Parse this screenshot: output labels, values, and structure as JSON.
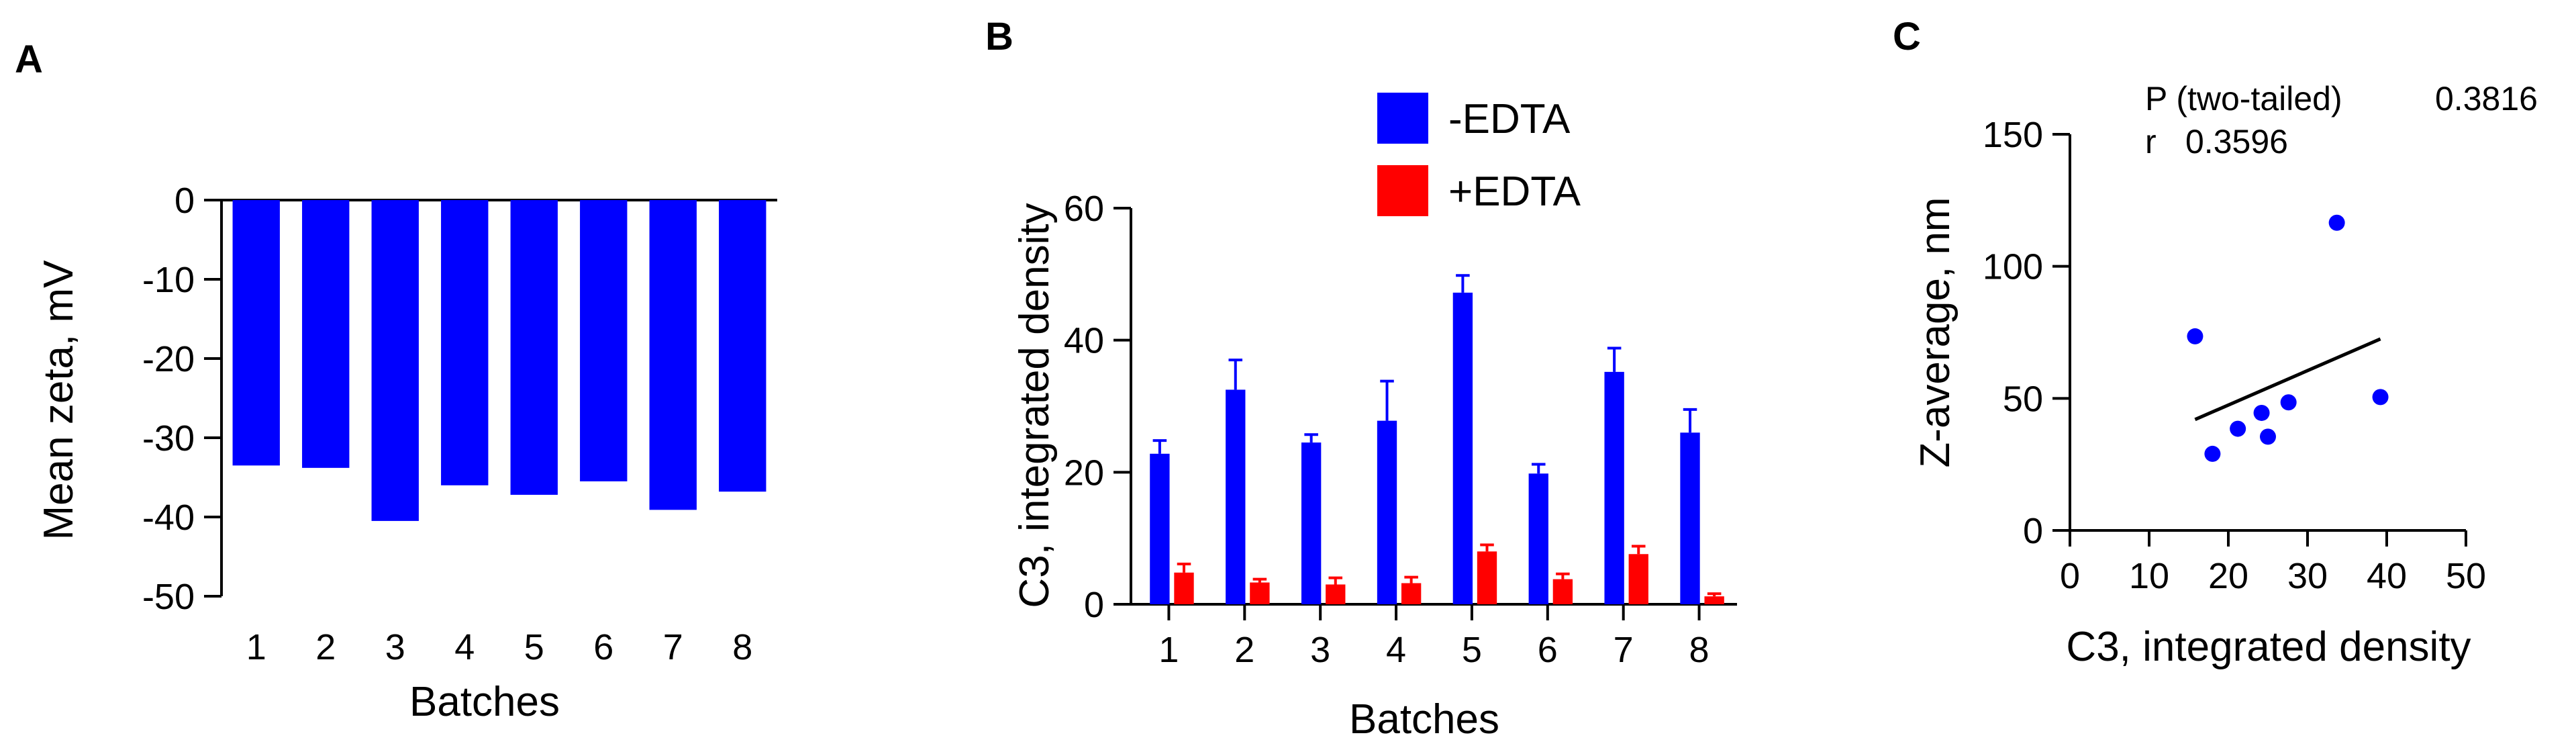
{
  "panels": [
    {
      "letter": "A"
    },
    {
      "letter": "B"
    },
    {
      "letter": "C"
    }
  ],
  "chart_data": [
    {
      "panel": "A",
      "type": "bar",
      "categories": [
        "1",
        "2",
        "3",
        "4",
        "5",
        "6",
        "7",
        "8"
      ],
      "values": [
        -33.5,
        -33.8,
        -40.5,
        -36.0,
        -37.2,
        -35.5,
        -39.1,
        -36.8
      ],
      "color": "#0000ff",
      "xlabel": "Batches",
      "ylabel": "Mean zeta, mV",
      "ylim": [
        -50,
        0
      ],
      "yticks": [
        "0",
        "-10",
        "-20",
        "-30",
        "-40",
        "-50"
      ],
      "ytick_values": [
        0,
        -10,
        -20,
        -30,
        -40,
        -50
      ]
    },
    {
      "panel": "B",
      "type": "bar",
      "categories": [
        "1",
        "2",
        "3",
        "4",
        "5",
        "6",
        "7",
        "8"
      ],
      "series": [
        {
          "name": "-EDTA",
          "color": "#0000ff",
          "values": [
            22.8,
            32.5,
            24.5,
            27.8,
            47.2,
            19.8,
            35.2,
            26.0
          ],
          "errors": [
            2.0,
            4.5,
            1.2,
            6.0,
            2.6,
            1.4,
            3.6,
            3.5
          ]
        },
        {
          "name": "+EDTA",
          "color": "#ff0000",
          "values": [
            4.8,
            3.3,
            3.0,
            3.2,
            8.0,
            3.8,
            7.6,
            1.2
          ],
          "errors": [
            1.3,
            0.5,
            1.0,
            0.9,
            1.0,
            0.8,
            1.2,
            0.4
          ]
        }
      ],
      "xlabel": "Batches",
      "ylabel": "C3, integrated density",
      "ylim": [
        0,
        60
      ],
      "yticks": [
        "0",
        "20",
        "40",
        "60"
      ],
      "ytick_values": [
        0,
        20,
        40,
        60
      ]
    },
    {
      "panel": "C",
      "type": "scatter",
      "points": [
        {
          "x": 15.8,
          "y": 73.5
        },
        {
          "x": 18.0,
          "y": 29.0
        },
        {
          "x": 21.2,
          "y": 38.5
        },
        {
          "x": 24.2,
          "y": 44.5
        },
        {
          "x": 25.0,
          "y": 35.5
        },
        {
          "x": 27.6,
          "y": 48.5
        },
        {
          "x": 33.7,
          "y": 116.5
        },
        {
          "x": 39.2,
          "y": 50.5
        }
      ],
      "color": "#0000ff",
      "fit_line": {
        "x1": 15.8,
        "y1": 42.0,
        "x2": 39.2,
        "y2": 72.5
      },
      "stats": {
        "p_label": "P (two-tailed)",
        "p_value": "0.3816",
        "r_label": "r",
        "r_value": "0.3596"
      },
      "xlabel": "C3, integrated density",
      "ylabel": "Z-average, nm",
      "xlim": [
        0,
        50
      ],
      "ylim": [
        0,
        150
      ],
      "xticks": [
        "0",
        "10",
        "20",
        "30",
        "40",
        "50"
      ],
      "xtick_values": [
        0,
        10,
        20,
        30,
        40,
        50
      ],
      "yticks": [
        "0",
        "50",
        "100",
        "150"
      ],
      "ytick_values": [
        0,
        50,
        100,
        150
      ]
    }
  ]
}
